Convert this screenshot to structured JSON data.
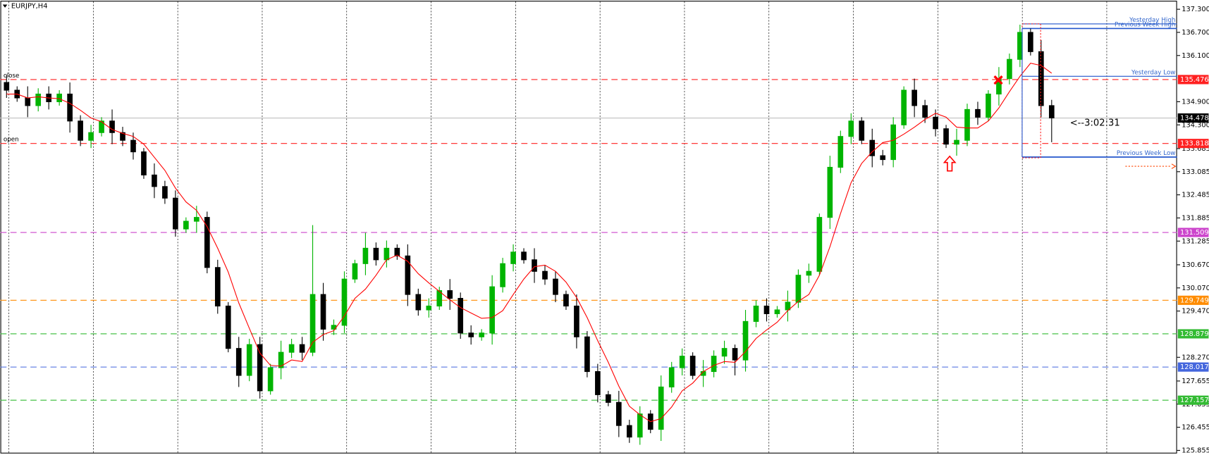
{
  "chart_data": {
    "type": "candlestick",
    "title": "EURJPY,H4",
    "bull_color": "#00b400",
    "bear_color": "#000000",
    "ma_color": "#ff0000",
    "ylim": [
      125.795,
      137.5
    ],
    "yticks": [
      {
        "value": 137.3,
        "label": "137.300"
      },
      {
        "value": 136.7,
        "label": "136.700"
      },
      {
        "value": 136.1,
        "label": "136.100"
      },
      {
        "value": 134.9,
        "label": "134.900"
      },
      {
        "value": 134.3,
        "label": "134.300"
      },
      {
        "value": 133.685,
        "label": "133.685"
      },
      {
        "value": 133.085,
        "label": "133.085"
      },
      {
        "value": 132.485,
        "label": "132.485"
      },
      {
        "value": 131.885,
        "label": "131.885"
      },
      {
        "value": 131.285,
        "label": "131.285"
      },
      {
        "value": 130.67,
        "label": "130.670"
      },
      {
        "value": 130.07,
        "label": "130.070"
      },
      {
        "value": 129.47,
        "label": "129.470"
      },
      {
        "value": 128.27,
        "label": "128.270"
      },
      {
        "value": 127.655,
        "label": "127.655"
      },
      {
        "value": 127.055,
        "label": "127.055"
      },
      {
        "value": 126.455,
        "label": "126.455"
      },
      {
        "value": 125.855,
        "label": "125.855"
      }
    ],
    "ohlc": [
      [
        135.4,
        135.6,
        135.0,
        135.2
      ],
      [
        135.2,
        135.3,
        134.9,
        135.0
      ],
      [
        135.0,
        135.3,
        134.5,
        134.8
      ],
      [
        134.8,
        135.25,
        134.65,
        135.1
      ],
      [
        135.1,
        135.3,
        134.7,
        134.9
      ],
      [
        134.9,
        135.2,
        134.8,
        135.1
      ],
      [
        135.1,
        135.4,
        134.1,
        134.4
      ],
      [
        134.4,
        134.55,
        133.75,
        133.9
      ],
      [
        133.9,
        134.3,
        133.7,
        134.1
      ],
      [
        134.1,
        134.5,
        134.0,
        134.4
      ],
      [
        134.4,
        134.7,
        133.8,
        134.1
      ],
      [
        134.1,
        134.25,
        133.75,
        133.9
      ],
      [
        133.9,
        134.1,
        133.4,
        133.6
      ],
      [
        133.6,
        133.7,
        132.9,
        133.0
      ],
      [
        133.0,
        133.3,
        132.4,
        132.7
      ],
      [
        132.7,
        132.85,
        132.25,
        132.4
      ],
      [
        132.4,
        132.6,
        131.4,
        131.6
      ],
      [
        131.6,
        131.9,
        131.5,
        131.8
      ],
      [
        131.8,
        132.2,
        131.5,
        131.9
      ],
      [
        131.9,
        132.05,
        130.45,
        130.6
      ],
      [
        130.6,
        130.8,
        129.4,
        129.6
      ],
      [
        129.6,
        129.7,
        128.4,
        128.5
      ],
      [
        128.5,
        128.8,
        127.5,
        127.8
      ],
      [
        127.8,
        128.75,
        127.65,
        128.6
      ],
      [
        128.6,
        128.8,
        127.2,
        127.4
      ],
      [
        127.4,
        128.1,
        127.3,
        128.0
      ],
      [
        128.0,
        128.7,
        127.7,
        128.4
      ],
      [
        128.4,
        128.75,
        128.25,
        128.6
      ],
      [
        128.6,
        128.8,
        128.2,
        128.4
      ],
      [
        128.4,
        131.7,
        128.3,
        129.9
      ],
      [
        129.9,
        130.2,
        128.7,
        129.0
      ],
      [
        129.0,
        129.25,
        128.85,
        129.1
      ],
      [
        129.1,
        130.5,
        128.9,
        130.3
      ],
      [
        130.3,
        130.8,
        130.2,
        130.7
      ],
      [
        130.7,
        131.5,
        130.4,
        131.1
      ],
      [
        131.1,
        131.25,
        130.65,
        130.8
      ],
      [
        130.8,
        131.3,
        130.6,
        131.1
      ],
      [
        131.1,
        131.2,
        130.8,
        130.9
      ],
      [
        130.9,
        131.2,
        129.6,
        129.9
      ],
      [
        129.9,
        130.05,
        129.35,
        129.5
      ],
      [
        129.5,
        129.8,
        129.3,
        129.6
      ],
      [
        129.6,
        130.1,
        129.5,
        130.0
      ],
      [
        130.0,
        130.3,
        129.5,
        129.8
      ],
      [
        129.8,
        129.95,
        128.75,
        128.9
      ],
      [
        128.9,
        129.1,
        128.6,
        128.8
      ],
      [
        128.8,
        129.0,
        128.7,
        128.9
      ],
      [
        128.9,
        130.4,
        128.6,
        130.1
      ],
      [
        130.1,
        130.85,
        129.95,
        130.7
      ],
      [
        130.7,
        131.2,
        130.5,
        131.0
      ],
      [
        131.0,
        131.1,
        130.7,
        130.8
      ],
      [
        130.8,
        131.1,
        130.2,
        130.5
      ],
      [
        130.5,
        130.65,
        130.15,
        130.3
      ],
      [
        130.3,
        130.5,
        129.7,
        129.9
      ],
      [
        129.9,
        130.0,
        129.5,
        129.6
      ],
      [
        129.6,
        129.9,
        128.5,
        128.8
      ],
      [
        128.8,
        128.95,
        127.75,
        127.9
      ],
      [
        127.9,
        128.1,
        127.1,
        127.3
      ],
      [
        127.3,
        127.4,
        127.0,
        127.1
      ],
      [
        127.1,
        127.4,
        126.2,
        126.5
      ],
      [
        126.5,
        126.65,
        126.05,
        126.2
      ],
      [
        126.2,
        127.0,
        126.0,
        126.8
      ],
      [
        126.8,
        126.9,
        126.3,
        126.4
      ],
      [
        126.4,
        127.8,
        126.1,
        127.5
      ],
      [
        127.5,
        128.15,
        127.35,
        128.0
      ],
      [
        128.0,
        128.5,
        127.8,
        128.3
      ],
      [
        128.3,
        128.4,
        127.7,
        127.8
      ],
      [
        127.8,
        128.2,
        127.5,
        127.9
      ],
      [
        127.9,
        128.45,
        127.75,
        128.3
      ],
      [
        128.3,
        128.7,
        128.1,
        128.5
      ],
      [
        128.5,
        128.6,
        127.8,
        128.2
      ],
      [
        128.2,
        129.5,
        127.9,
        129.2
      ],
      [
        129.2,
        129.75,
        129.05,
        129.6
      ],
      [
        129.6,
        129.8,
        129.2,
        129.4
      ],
      [
        129.4,
        129.6,
        129.3,
        129.5
      ],
      [
        129.5,
        130.0,
        129.2,
        129.7
      ],
      [
        129.7,
        130.55,
        129.55,
        130.4
      ],
      [
        130.4,
        130.7,
        130.2,
        130.5
      ],
      [
        130.5,
        132.0,
        130.4,
        131.9
      ],
      [
        131.9,
        133.5,
        131.6,
        133.2
      ],
      [
        133.2,
        134.15,
        133.05,
        134.0
      ],
      [
        134.0,
        134.6,
        133.8,
        134.4
      ],
      [
        134.4,
        134.5,
        133.8,
        133.9
      ],
      [
        133.9,
        134.2,
        133.2,
        133.5
      ],
      [
        133.5,
        133.65,
        133.25,
        133.4
      ],
      [
        133.4,
        134.5,
        133.2,
        134.3
      ],
      [
        134.3,
        135.3,
        134.2,
        135.2
      ],
      [
        135.2,
        135.5,
        134.5,
        134.8
      ],
      [
        134.8,
        134.95,
        134.35,
        134.5
      ],
      [
        134.5,
        134.7,
        134.0,
        134.2
      ],
      [
        134.2,
        134.3,
        133.7,
        133.8
      ],
      [
        133.8,
        134.2,
        133.5,
        133.9
      ],
      [
        133.9,
        134.85,
        133.75,
        134.7
      ],
      [
        134.7,
        134.9,
        134.3,
        134.5
      ],
      [
        134.5,
        135.2,
        134.4,
        135.1
      ],
      [
        135.1,
        135.8,
        134.8,
        135.5
      ],
      [
        135.5,
        136.15,
        135.35,
        136.0
      ],
      [
        136.0,
        136.9,
        135.8,
        136.7
      ],
      [
        136.7,
        136.8,
        136.1,
        136.2
      ],
      [
        136.2,
        136.5,
        134.5,
        134.8
      ],
      [
        134.8,
        134.95,
        133.85,
        134.48
      ]
    ],
    "ma": [
      135.1,
      135.1,
      135.0,
      135.03,
      135.0,
      134.98,
      134.86,
      134.68,
      134.48,
      134.38,
      134.18,
      134.08,
      134.0,
      133.8,
      133.46,
      133.12,
      132.66,
      132.3,
      132.08,
      131.66,
      131.1,
      130.48,
      129.68,
      129.02,
      128.38,
      128.06,
      128.04,
      128.2,
      128.16,
      128.66,
      128.86,
      128.96,
      129.34,
      129.8,
      130.04,
      130.4,
      130.8,
      130.92,
      130.76,
      130.44,
      130.2,
      129.98,
      129.76,
      129.56,
      129.42,
      129.28,
      129.3,
      129.48,
      129.9,
      130.3,
      130.62,
      130.66,
      130.5,
      130.22,
      129.82,
      129.3,
      128.7,
      128.14,
      127.52,
      127.0,
      126.78,
      126.6,
      126.68,
      126.98,
      127.4,
      127.6,
      127.9,
      128.06,
      128.16,
      128.14,
      128.42,
      128.76,
      128.98,
      129.18,
      129.48,
      129.72,
      129.9,
      130.4,
      131.14,
      132.0,
      132.8,
      133.3,
      133.6,
      133.84,
      133.9,
      134.06,
      134.24,
      134.44,
      134.6,
      134.5,
      134.24,
      134.22,
      134.22,
      134.4,
      134.74,
      135.16,
      135.56,
      135.9,
      135.84,
      135.64
    ],
    "levels": [
      {
        "value": 135.476,
        "color": "#ff2020",
        "name": "close"
      },
      {
        "value": 133.818,
        "color": "#ff2020",
        "name": "open"
      },
      {
        "value": 131.509,
        "color": "#cc44cc"
      },
      {
        "value": 129.749,
        "color": "#ff8c00"
      },
      {
        "value": 128.879,
        "color": "#33bb33"
      },
      {
        "value": 128.017,
        "color": "#4466dd"
      },
      {
        "value": 127.157,
        "color": "#33bb33"
      }
    ],
    "current_price": 134.478,
    "ranges": [
      {
        "name": "Yesterday High",
        "value": 136.92
      },
      {
        "name": "Previous Week High",
        "value": 136.8
      },
      {
        "name": "Yesterday Low",
        "value": 135.56
      },
      {
        "name": "Previous Week Low",
        "value": 133.465
      }
    ],
    "timer": "<--3:02:31"
  }
}
